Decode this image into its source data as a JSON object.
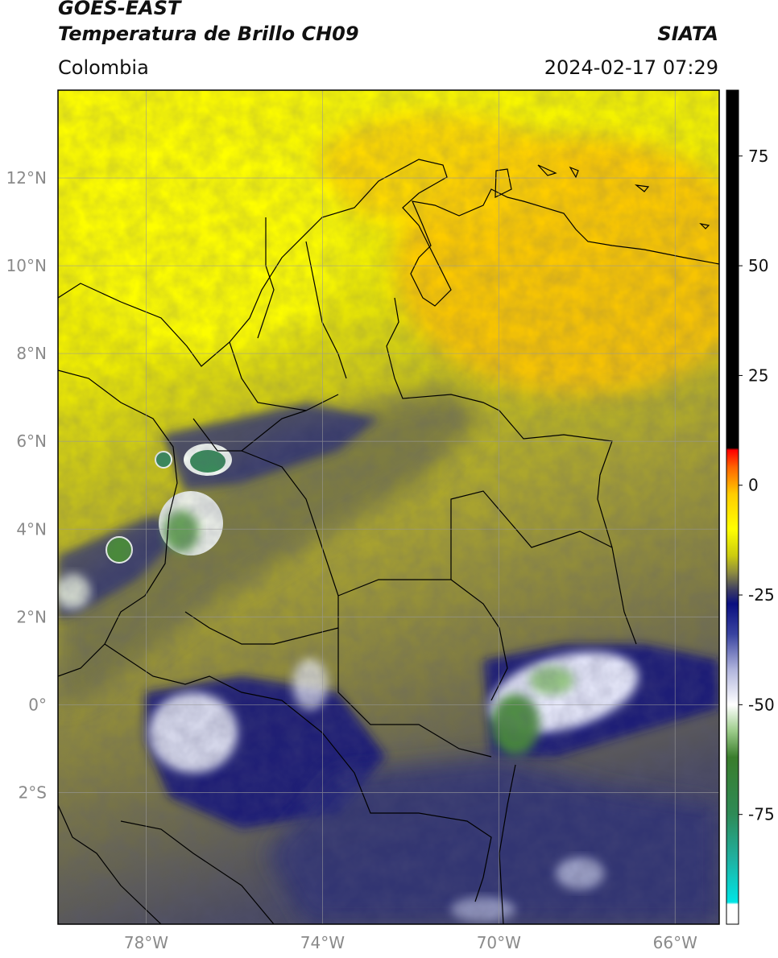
{
  "header": {
    "satellite": "GOES-EAST",
    "product": "Temperatura de Brillo CH09",
    "brand": "SIATA",
    "region": "Colombia",
    "datetime": "2024-02-17 07:29"
  },
  "map": {
    "extent": {
      "lon_min": -80,
      "lon_max": -65,
      "lat_min": -5,
      "lat_max": 14
    },
    "lat_ticks": [
      {
        "value": 12,
        "label": "12°N"
      },
      {
        "value": 10,
        "label": "10°N"
      },
      {
        "value": 8,
        "label": "8°N"
      },
      {
        "value": 6,
        "label": "6°N"
      },
      {
        "value": 4,
        "label": "4°N"
      },
      {
        "value": 2,
        "label": "2°N"
      },
      {
        "value": 0,
        "label": "0°"
      },
      {
        "value": -2,
        "label": "2°S"
      }
    ],
    "lon_ticks": [
      {
        "value": -78,
        "label": "78°W"
      },
      {
        "value": -74,
        "label": "74°W"
      },
      {
        "value": -70,
        "label": "70°W"
      },
      {
        "value": -66,
        "label": "66°W"
      }
    ]
  },
  "colorbar": {
    "range": [
      -100,
      90
    ],
    "ticks": [
      {
        "value": 75,
        "label": "75"
      },
      {
        "value": 50,
        "label": "50"
      },
      {
        "value": 25,
        "label": "25"
      },
      {
        "value": 0,
        "label": "0"
      },
      {
        "value": -25,
        "label": "-25"
      },
      {
        "value": -50,
        "label": "-50"
      },
      {
        "value": -75,
        "label": "-75"
      }
    ],
    "stops": [
      {
        "value": -100,
        "color": "#ffffff"
      },
      {
        "value": -95.5,
        "color": "#ffffff"
      },
      {
        "value": -95,
        "color": "#00e5e5"
      },
      {
        "value": -85,
        "color": "#20b0a0"
      },
      {
        "value": -75,
        "color": "#2e8b57"
      },
      {
        "value": -62,
        "color": "#3a7d2c"
      },
      {
        "value": -56,
        "color": "#9ccc8a"
      },
      {
        "value": -50,
        "color": "#ffffff"
      },
      {
        "value": -42,
        "color": "#b0b4dc"
      },
      {
        "value": -34,
        "color": "#3a44a0"
      },
      {
        "value": -27,
        "color": "#0a0f80"
      },
      {
        "value": -24,
        "color": "#3a3a64"
      },
      {
        "value": -20,
        "color": "#8c8a40"
      },
      {
        "value": -16,
        "color": "#cccc10"
      },
      {
        "value": -10,
        "color": "#ffff00"
      },
      {
        "value": -2,
        "color": "#ffcc00"
      },
      {
        "value": 4,
        "color": "#ff6600"
      },
      {
        "value": 8,
        "color": "#ff0000"
      },
      {
        "value": 8.5,
        "color": "#000000"
      },
      {
        "value": 90,
        "color": "#000000"
      }
    ]
  }
}
